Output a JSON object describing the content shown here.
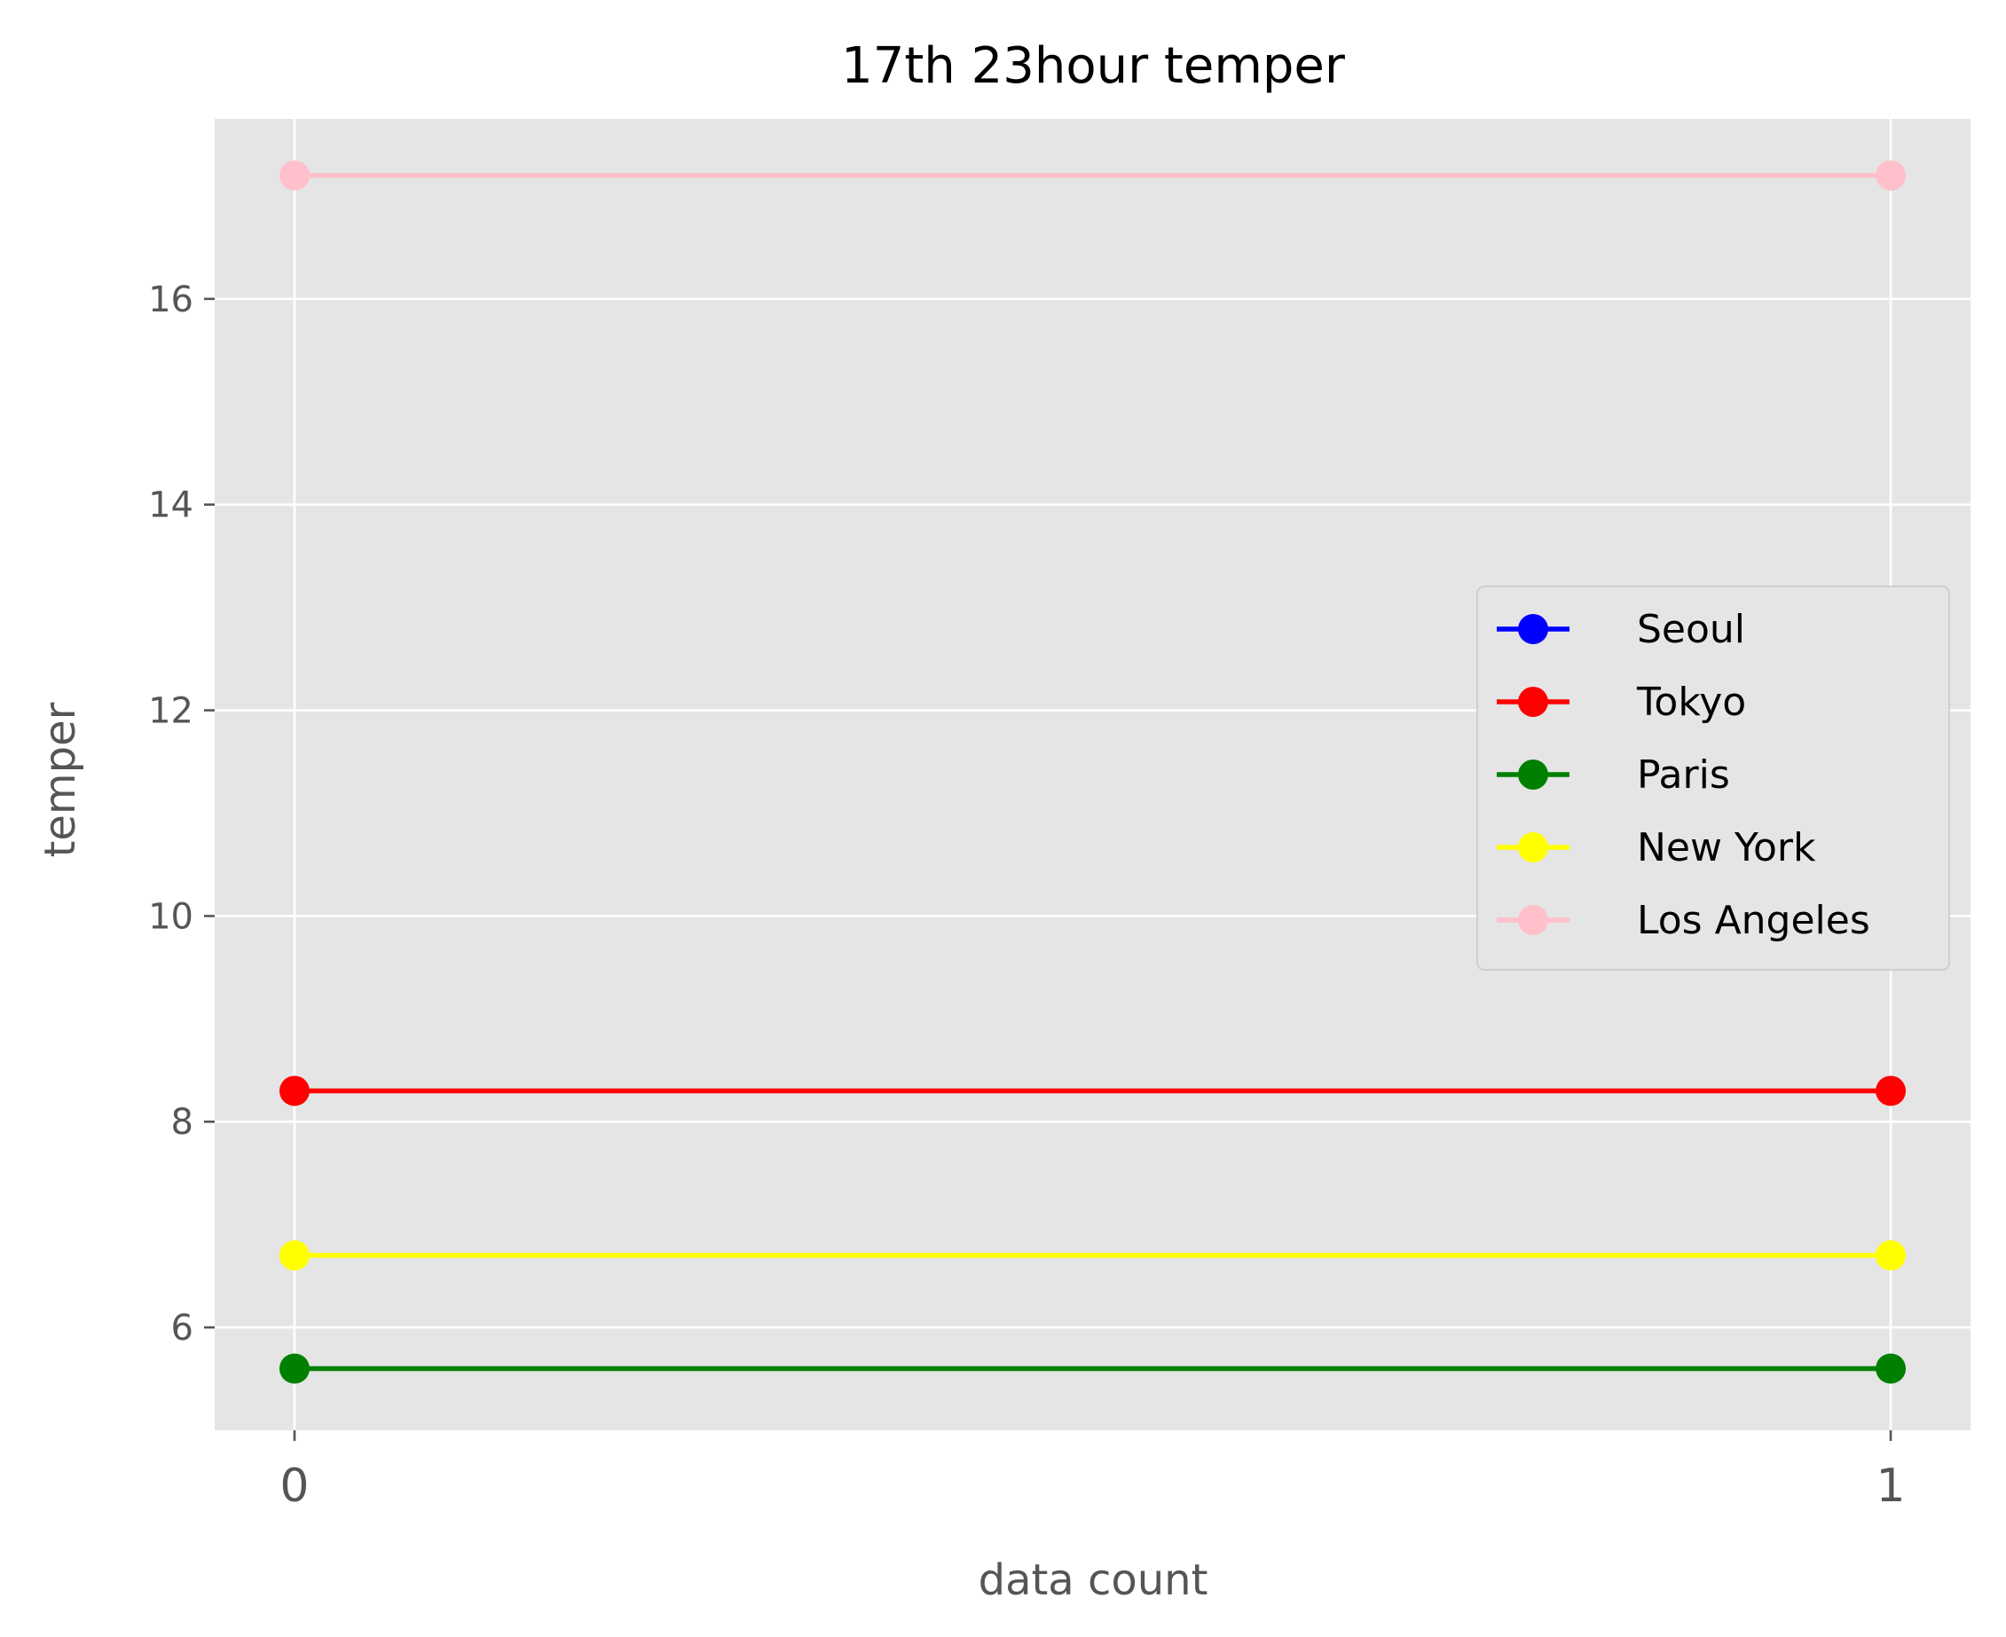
{
  "chart_data": {
    "type": "line",
    "title": "17th 23hour temper",
    "xlabel": "data count",
    "ylabel": "temper",
    "x": [
      0,
      1
    ],
    "x_tick_labels": [
      "0",
      "1"
    ],
    "y_ticks": [
      6,
      8,
      10,
      12,
      14,
      16
    ],
    "y_tick_labels": [
      "6",
      "8",
      "10",
      "12",
      "14",
      "16"
    ],
    "xlim": [
      -0.05,
      1.05
    ],
    "ylim": [
      5.0,
      17.75
    ],
    "grid": true,
    "style": "ggplot",
    "legend_position": "center-right",
    "background_color": "#e5e5e5",
    "grid_color": "#ffffff",
    "series": [
      {
        "name": "Seoul",
        "color": "#0000ff",
        "values": [
          null,
          null
        ],
        "marker": "circle"
      },
      {
        "name": "Tokyo",
        "color": "#ff0000",
        "values": [
          8.3,
          8.3
        ],
        "marker": "circle"
      },
      {
        "name": "Paris",
        "color": "#008000",
        "values": [
          5.6,
          5.6
        ],
        "marker": "circle"
      },
      {
        "name": "New York",
        "color": "#ffff00",
        "values": [
          6.7,
          6.7
        ],
        "marker": "circle"
      },
      {
        "name": "Los Angeles",
        "color": "#ffc0cb",
        "values": [
          17.2,
          17.2
        ],
        "marker": "circle"
      }
    ]
  }
}
